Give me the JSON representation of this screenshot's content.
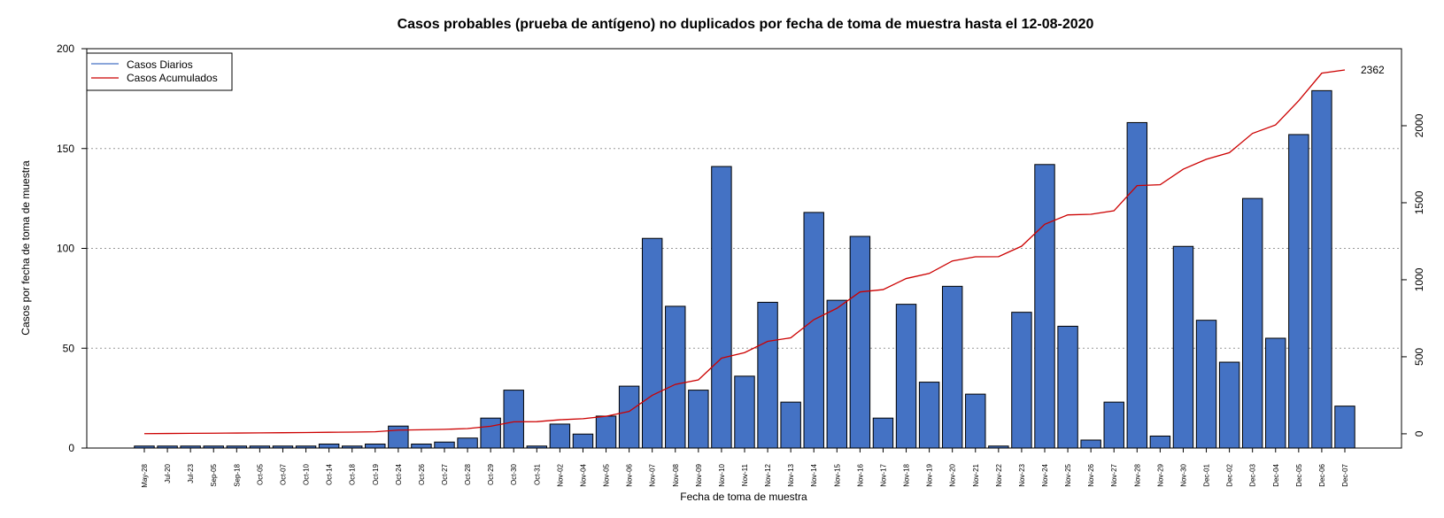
{
  "chart_data": {
    "type": "bar",
    "title": "Casos probables (prueba de antígeno) no duplicados por fecha de toma de muestra hasta el 12-08-2020",
    "xlabel": "Fecha de toma de muestra",
    "ylabel": "Casos por fecha de toma de muestra",
    "ylim": [
      0,
      200
    ],
    "yticks": [
      0,
      50,
      100,
      150,
      200
    ],
    "y2lim": [
      -92.5,
      2500
    ],
    "y2ticks": [
      0,
      500,
      1000,
      1500,
      2000
    ],
    "grid": "horizontal dotted",
    "legend_position": "top-left",
    "categories": [
      "May-28",
      "Jul-20",
      "Jul-23",
      "Sep-05",
      "Sep-18",
      "Oct-05",
      "Oct-07",
      "Oct-10",
      "Oct-14",
      "Oct-18",
      "Oct-19",
      "Oct-24",
      "Oct-26",
      "Oct-27",
      "Oct-28",
      "Oct-29",
      "Oct-30",
      "Oct-31",
      "Nov-02",
      "Nov-04",
      "Nov-05",
      "Nov-06",
      "Nov-07",
      "Nov-08",
      "Nov-09",
      "Nov-10",
      "Nov-11",
      "Nov-12",
      "Nov-13",
      "Nov-14",
      "Nov-15",
      "Nov-16",
      "Nov-17",
      "Nov-18",
      "Nov-19",
      "Nov-20",
      "Nov-21",
      "Nov-22",
      "Nov-23",
      "Nov-24",
      "Nov-25",
      "Nov-26",
      "Nov-27",
      "Nov-28",
      "Nov-29",
      "Nov-30",
      "Dec-01",
      "Dec-02",
      "Dec-03",
      "Dec-04",
      "Dec-05",
      "Dec-06",
      "Dec-07"
    ],
    "series": [
      {
        "name": "Casos Diarios",
        "color": "#4472C4",
        "axis": "left",
        "values": [
          1,
          1,
          1,
          1,
          1,
          1,
          1,
          1,
          2,
          1,
          2,
          11,
          2,
          3,
          5,
          15,
          29,
          1,
          12,
          7,
          16,
          31,
          105,
          71,
          29,
          141,
          36,
          73,
          23,
          118,
          74,
          106,
          15,
          72,
          33,
          81,
          27,
          1,
          68,
          142,
          61,
          4,
          23,
          163,
          6,
          101,
          64,
          43,
          125,
          55,
          157,
          179,
          21
        ]
      },
      {
        "name": "Casos Acumulados",
        "color": "#CC0000",
        "axis": "right",
        "values": [
          1,
          2,
          3,
          4,
          5,
          6,
          7,
          8,
          10,
          11,
          13,
          24,
          26,
          29,
          34,
          49,
          78,
          79,
          91,
          98,
          114,
          145,
          250,
          321,
          350,
          491,
          527,
          600,
          623,
          741,
          815,
          921,
          936,
          1008,
          1041,
          1122,
          1149,
          1150,
          1218,
          1360,
          1421,
          1425,
          1448,
          1611,
          1617,
          1718,
          1782,
          1825,
          1950,
          2005,
          2162,
          2341,
          2362
        ]
      }
    ],
    "annotation": "2362"
  }
}
